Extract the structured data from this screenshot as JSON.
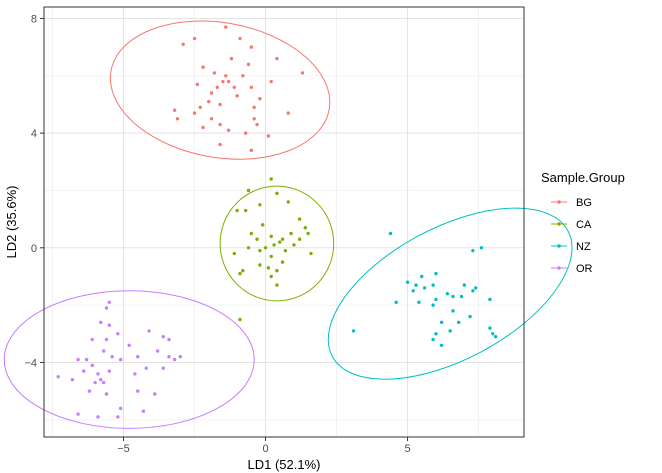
{
  "chart_data": {
    "type": "scatter",
    "title": "",
    "xlabel": "LD1 (52.1%)",
    "ylabel": "LD2 (35.6%)",
    "xlim": [
      -7.8,
      9.1
    ],
    "ylim": [
      -6.6,
      8.4
    ],
    "xticks": [
      -5,
      0,
      5
    ],
    "yticks": [
      -4,
      0,
      4,
      8
    ],
    "grid": true,
    "legend_title": "Sample.Group",
    "legend_position": "right",
    "series": [
      {
        "name": "BG",
        "color": "#F8766D",
        "points": [
          [
            -2.9,
            7.1
          ],
          [
            -2.5,
            7.3
          ],
          [
            -1.4,
            7.7
          ],
          [
            -0.9,
            7.3
          ],
          [
            -0.5,
            7.0
          ],
          [
            -2.2,
            6.3
          ],
          [
            -1.2,
            6.6
          ],
          [
            -2.4,
            5.7
          ],
          [
            -1.8,
            6.1
          ],
          [
            -1.4,
            6.0
          ],
          [
            -1.1,
            5.6
          ],
          [
            -0.8,
            6.0
          ],
          [
            -0.6,
            6.4
          ],
          [
            0.4,
            6.6
          ],
          [
            1.3,
            6.1
          ],
          [
            -2.0,
            5.1
          ],
          [
            -1.7,
            5.6
          ],
          [
            -1.9,
            5.4
          ],
          [
            -1.5,
            5.8
          ],
          [
            -1.3,
            5.8
          ],
          [
            -1.6,
            5.0
          ],
          [
            -1.0,
            5.3
          ],
          [
            -0.5,
            5.6
          ],
          [
            -0.2,
            5.2
          ],
          [
            -0.4,
            4.9
          ],
          [
            0.2,
            5.8
          ],
          [
            -2.3,
            4.9
          ],
          [
            -3.2,
            4.8
          ],
          [
            -3.1,
            4.5
          ],
          [
            -2.5,
            4.7
          ],
          [
            -1.9,
            4.5
          ],
          [
            -1.6,
            4.3
          ],
          [
            -1.3,
            4.1
          ],
          [
            -2.2,
            4.2
          ],
          [
            -0.7,
            4.0
          ],
          [
            -0.3,
            4.3
          ],
          [
            0.1,
            3.9
          ],
          [
            -0.4,
            4.5
          ],
          [
            -1.6,
            3.6
          ],
          [
            -0.5,
            3.4
          ],
          [
            0.8,
            4.7
          ]
        ]
      },
      {
        "name": "CA",
        "color": "#7CAE00",
        "points": [
          [
            0.2,
            2.4
          ],
          [
            0.4,
            1.9
          ],
          [
            -0.6,
            2.0
          ],
          [
            -0.7,
            1.3
          ],
          [
            -1.0,
            1.3
          ],
          [
            -0.2,
            1.5
          ],
          [
            0.8,
            1.6
          ],
          [
            1.2,
            1.0
          ],
          [
            -0.1,
            0.8
          ],
          [
            0.9,
            0.5
          ],
          [
            1.4,
            0.7
          ],
          [
            1.5,
            0.5
          ],
          [
            1.2,
            0.3
          ],
          [
            -0.5,
            0.5
          ],
          [
            0.2,
            0.4
          ],
          [
            -0.3,
            0.3
          ],
          [
            0.3,
            0.1
          ],
          [
            0.5,
            0.2
          ],
          [
            0.6,
            0.3
          ],
          [
            1.0,
            0.1
          ],
          [
            -0.6,
            0.0
          ],
          [
            -0.2,
            -0.1
          ],
          [
            0.0,
            0.0
          ],
          [
            0.2,
            -0.3
          ],
          [
            0.7,
            -0.1
          ],
          [
            1.6,
            -0.2
          ],
          [
            -1.1,
            -0.2
          ],
          [
            -0.8,
            -0.8
          ],
          [
            -0.2,
            -0.6
          ],
          [
            0.1,
            -0.7
          ],
          [
            0.4,
            -0.8
          ],
          [
            0.6,
            -0.5
          ],
          [
            -0.9,
            -0.9
          ],
          [
            0.2,
            -1.0
          ],
          [
            0.4,
            -1.3
          ],
          [
            -0.9,
            -2.5
          ]
        ]
      },
      {
        "name": "NZ",
        "color": "#00BFC4",
        "points": [
          [
            4.4,
            0.5
          ],
          [
            7.6,
            0.0
          ],
          [
            7.3,
            -0.1
          ],
          [
            5.5,
            -1.0
          ],
          [
            6.0,
            -0.9
          ],
          [
            5.9,
            -1.3
          ],
          [
            7.0,
            -1.3
          ],
          [
            5.0,
            -1.2
          ],
          [
            5.6,
            -1.4
          ],
          [
            5.3,
            -1.3
          ],
          [
            5.2,
            -1.5
          ],
          [
            6.4,
            -1.6
          ],
          [
            6.6,
            -1.7
          ],
          [
            6.9,
            -1.7
          ],
          [
            7.3,
            -1.5
          ],
          [
            7.4,
            -1.4
          ],
          [
            6.0,
            -1.8
          ],
          [
            5.9,
            -2.0
          ],
          [
            4.6,
            -1.9
          ],
          [
            5.4,
            -1.9
          ],
          [
            6.6,
            -2.2
          ],
          [
            6.8,
            -2.6
          ],
          [
            6.2,
            -2.6
          ],
          [
            6.5,
            -2.9
          ],
          [
            6.0,
            -3.0
          ],
          [
            5.9,
            -3.2
          ],
          [
            6.2,
            -3.4
          ],
          [
            7.2,
            -2.4
          ],
          [
            7.9,
            -1.8
          ],
          [
            7.9,
            -2.8
          ],
          [
            8.0,
            -3.0
          ],
          [
            8.1,
            -3.1
          ],
          [
            3.1,
            -2.9
          ]
        ]
      },
      {
        "name": "OR",
        "color": "#C77CFF",
        "points": [
          [
            -5.5,
            -1.9
          ],
          [
            -5.6,
            -2.1
          ],
          [
            -5.8,
            -2.6
          ],
          [
            -5.5,
            -2.7
          ],
          [
            -4.1,
            -2.9
          ],
          [
            -3.6,
            -3.1
          ],
          [
            -3.4,
            -3.2
          ],
          [
            -5.2,
            -3.0
          ],
          [
            -6.1,
            -3.2
          ],
          [
            -5.6,
            -3.2
          ],
          [
            -5.7,
            -3.6
          ],
          [
            -5.4,
            -3.8
          ],
          [
            -4.8,
            -3.4
          ],
          [
            -3.8,
            -3.6
          ],
          [
            -3.4,
            -3.8
          ],
          [
            -3.0,
            -3.8
          ],
          [
            -3.2,
            -3.9
          ],
          [
            -4.5,
            -3.8
          ],
          [
            -5.1,
            -3.9
          ],
          [
            -6.6,
            -3.9
          ],
          [
            -6.3,
            -3.9
          ],
          [
            -6.1,
            -4.1
          ],
          [
            -5.9,
            -4.4
          ],
          [
            -5.5,
            -4.3
          ],
          [
            -6.4,
            -4.3
          ],
          [
            -5.8,
            -4.6
          ],
          [
            -5.7,
            -4.7
          ],
          [
            -6.0,
            -4.7
          ],
          [
            -7.3,
            -4.5
          ],
          [
            -6.8,
            -4.6
          ],
          [
            -4.6,
            -4.4
          ],
          [
            -4.2,
            -4.2
          ],
          [
            -3.6,
            -4.2
          ],
          [
            -6.2,
            -5.0
          ],
          [
            -5.6,
            -5.1
          ],
          [
            -4.5,
            -5.0
          ],
          [
            -3.9,
            -5.1
          ],
          [
            -5.1,
            -5.6
          ],
          [
            -4.3,
            -5.7
          ],
          [
            -5.2,
            -5.9
          ],
          [
            -6.6,
            -5.8
          ],
          [
            -5.9,
            -5.9
          ]
        ]
      }
    ],
    "ellipses": [
      {
        "series": "BG",
        "cx": -1.6,
        "cy": 5.5,
        "rx": 3.9,
        "ry": 2.35,
        "angle": 10
      },
      {
        "series": "CA",
        "cx": 0.4,
        "cy": 0.15,
        "rx": 2.0,
        "ry": 2.0,
        "angle": 0
      },
      {
        "series": "NZ",
        "cx": 6.5,
        "cy": -1.6,
        "rx": 4.7,
        "ry": 2.3,
        "angle": -28
      },
      {
        "series": "OR",
        "cx": -4.8,
        "cy": -3.9,
        "rx": 4.4,
        "ry": 2.4,
        "angle": 0
      }
    ]
  }
}
